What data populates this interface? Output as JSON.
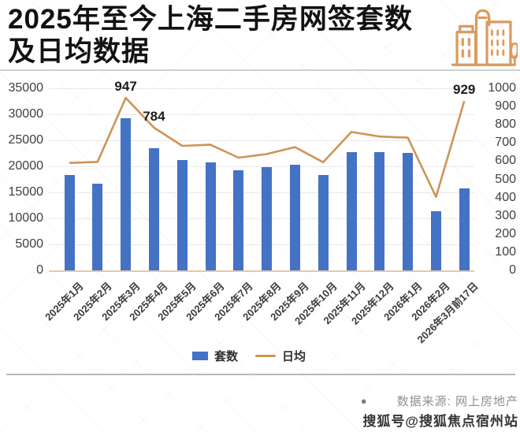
{
  "header": {
    "title_line1": "2025年至今上海二手房网签套数",
    "title_line2": "及日均数据"
  },
  "colors": {
    "bar": "#4472C4",
    "line": "#CE9455",
    "icon": "#DC9B5F"
  },
  "chart_data": {
    "type": "bar",
    "title": "2025年至今上海二手房网签套数及日均数据",
    "categories": [
      "2025年1月",
      "2025年2月",
      "2025年3月",
      "2025年4月",
      "2025年5月",
      "2025年6月",
      "2025年7月",
      "2025年8月",
      "2025年9月",
      "2025年10月",
      "2025年11月",
      "2025年12月",
      "2026年1月",
      "2026年2月",
      "2026年3月前17日"
    ],
    "series": [
      {
        "name": "套数",
        "type": "bar",
        "axis": "left",
        "color": "#4472C4",
        "values": [
          18300,
          16700,
          29300,
          23500,
          21200,
          20700,
          19200,
          19800,
          20300,
          18400,
          22800,
          22800,
          22600,
          11300,
          15800
        ]
      },
      {
        "name": "日均",
        "type": "line",
        "axis": "right",
        "color": "#CE9455",
        "values": [
          590,
          596,
          947,
          784,
          684,
          690,
          619,
          639,
          677,
          594,
          760,
          735,
          729,
          404,
          929
        ]
      }
    ],
    "point_labels": [
      {
        "series": "日均",
        "index": 2,
        "text": "947"
      },
      {
        "series": "日均",
        "index": 3,
        "text": "784"
      },
      {
        "series": "日均",
        "index": 14,
        "text": "929"
      }
    ],
    "left_axis": {
      "min": 0,
      "max": 35000,
      "step": 5000,
      "ticks": [
        "0",
        "5000",
        "10000",
        "15000",
        "20000",
        "25000",
        "30000",
        "35000"
      ]
    },
    "right_axis": {
      "min": 0,
      "max": 1000,
      "step": 100,
      "ticks": [
        "0",
        "100",
        "200",
        "300",
        "400",
        "500",
        "600",
        "700",
        "800",
        "900",
        "1000"
      ]
    },
    "grid": true,
    "legend_position": "bottom"
  },
  "legend": {
    "bar_label": "套数",
    "line_label": "日均"
  },
  "footer": {
    "bullet": "●",
    "source": "数据来源: 网上房地产",
    "account": "搜狐号@搜狐焦点宿州站"
  }
}
